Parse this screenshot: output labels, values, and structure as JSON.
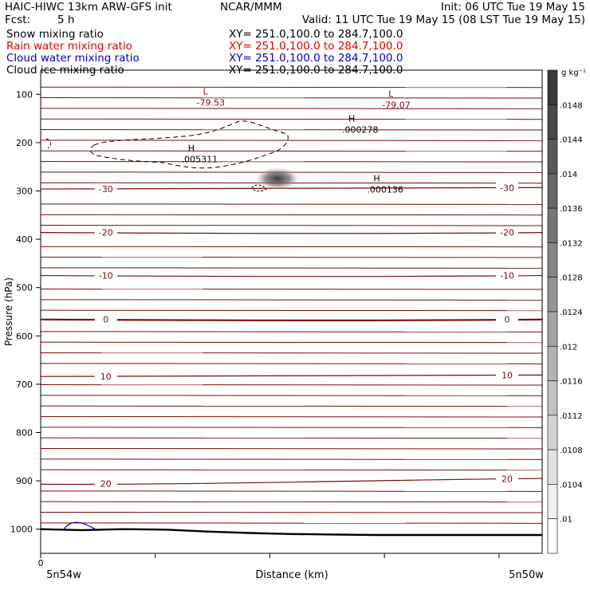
{
  "header": {
    "title": "HAIC-HIWC 13km ARW-GFS init",
    "org": "NCAR/MMM",
    "init": "Init: 06 UTC Tue 19 May 15",
    "fcst_label": "Fcst:",
    "fcst_value": "5 h",
    "valid": "Valid: 11 UTC Tue 19 May 15 (08 LST Tue 19 May 15)"
  },
  "fields": [
    {
      "name": "Snow mixing ratio",
      "xy": "XY= 251.0,100.0 to 284.7,100.0",
      "color": "#000000"
    },
    {
      "name": "Rain water mixing ratio",
      "xy": "XY= 251.0,100.0 to 284.7,100.0",
      "color": "#e00000"
    },
    {
      "name": "Cloud water mixing ratio",
      "xy": "XY= 251.0,100.0 to 284.7,100.0",
      "color": "#0000c8"
    },
    {
      "name": "Cloud ice mixing ratio",
      "xy": "XY= 251.0,100.0 to 284.7,100.0",
      "color": "#000000"
    }
  ],
  "colors": {
    "temperature_contour": "#7a0a0a",
    "cloud_water_contour": "#0000c8",
    "terrain": "#000000"
  },
  "chart_data": {
    "type": "cross-section",
    "xlabel": "Distance (km)",
    "ylabel": "Pressure (hPa)",
    "x_ticks": [
      "0"
    ],
    "x_endpoints": {
      "left": "5n54w",
      "right": "5n50w"
    },
    "y_ticks": [
      100,
      200,
      300,
      400,
      500,
      600,
      700,
      800,
      900,
      1000
    ],
    "ylim": [
      1050,
      50
    ],
    "temperature_contours": [
      {
        "value": -30,
        "label": "-30",
        "p_left": 296,
        "p_right": 293
      },
      {
        "value": -20,
        "label": "-20",
        "p_left": 386,
        "p_right": 386
      },
      {
        "value": -10,
        "label": "-10",
        "p_left": 475,
        "p_right": 475
      },
      {
        "value": 0,
        "label": "0",
        "p_left": 566,
        "p_right": 566
      },
      {
        "value": 10,
        "label": "10",
        "p_left": 684,
        "p_right": 681
      },
      {
        "value": 20,
        "label": "20",
        "p_left": 907,
        "p_right": 895
      }
    ],
    "extrema": [
      {
        "kind": "L",
        "value": "-79.53",
        "x_frac": 0.33,
        "p": 107
      },
      {
        "kind": "L",
        "value": "-79.07",
        "x_frac": 0.7,
        "p": 112
      },
      {
        "kind": "H",
        "value": ".000278",
        "x_frac": 0.62,
        "p": 163
      },
      {
        "kind": "H",
        "value": ".005311",
        "x_frac": 0.3,
        "p": 224
      },
      {
        "kind": "H",
        "value": ".000136",
        "x_frac": 0.67,
        "p": 287
      }
    ],
    "terrain_pressure": [
      1000,
      1002,
      1000,
      1001,
      1005,
      1008,
      1010,
      1011,
      1012,
      1012,
      1012,
      1012,
      1012
    ],
    "colorbar": {
      "unit": "g kg⁻¹",
      "labels": [
        ".0148",
        ".0144",
        ".014",
        ".0136",
        ".0132",
        ".0128",
        ".0124",
        ".012",
        ".0116",
        ".0112",
        ".0108",
        ".0104",
        ".01"
      ],
      "color_high": "#3a3a3a",
      "color_low": "#ffffff"
    }
  }
}
